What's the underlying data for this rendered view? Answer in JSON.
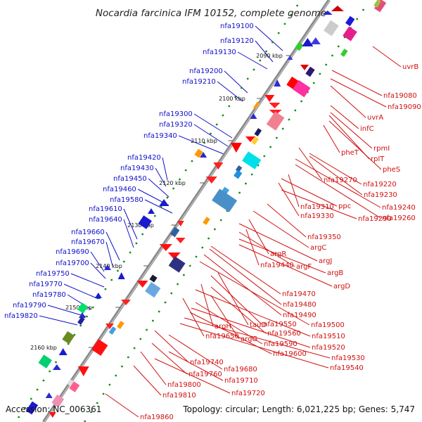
{
  "title": "Nocardia farcinica IFM 10152, complete genome",
  "footer": {
    "accession": "Accession: NC_006361",
    "summary": "Topology: circular; Length: 6,021,225 bp; Genes: 5,747"
  },
  "ticks": [
    "2090 kbp",
    "2100 kbp",
    "2110 kbp",
    "2120 kbp",
    "2130 kbp",
    "2140 kbp",
    "2150 kbp",
    "2160 kbp"
  ],
  "colors": {
    "left_label": "#1010c8",
    "right_label": "#d01010",
    "backbone": "#777777",
    "dots": "#1a8c1a"
  },
  "left_labels": [
    "nfa19100",
    "nfa19120",
    "nfa19130",
    "nfa19200",
    "nfa19210",
    "nfa19300",
    "nfa19320",
    "nfa19340",
    "nfa19420",
    "nfa19430",
    "nfa19450",
    "nfa19460",
    "nfa19580",
    "nfa19610",
    "nfa19640",
    "nfa19660",
    "nfa19670",
    "nfa19690",
    "nfa19700",
    "nfa19750",
    "nfa19770",
    "nfa19780",
    "nfa19790",
    "nfa19820"
  ],
  "right_labels": [
    "uvrB",
    "nfa19080",
    "nfa19090",
    "uvrA",
    "infC",
    "rpmI",
    "rplT",
    "pheS",
    "pheT",
    "nfa19220",
    "nfa19230",
    "nfa19270",
    "nfa19240",
    "nfa19260",
    "nfa19310",
    "ppc",
    "nfa19330",
    "nfa19290",
    "nfa19350",
    "argC",
    "argR",
    "argJ",
    "nfa19440",
    "argF",
    "argB",
    "argD",
    "nfa19470",
    "nfa19480",
    "nfa19490",
    "nfa19500",
    "tauD",
    "nfa19550",
    "argH",
    "nfa19560",
    "nfa19510",
    "nfa19650",
    "argG",
    "nfa19590",
    "nfa19520",
    "nfa19600",
    "nfa19530",
    "nfa19540",
    "nfa19740",
    "nfa19680",
    "nfa19760",
    "nfa19710",
    "nfa19800",
    "nfa19720",
    "nfa19810",
    "nfa19860"
  ]
}
